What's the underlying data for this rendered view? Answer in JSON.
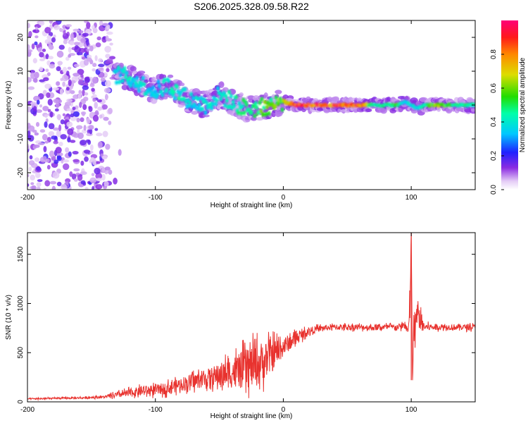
{
  "title": "S206.2025.328.09.58.R22",
  "chart_data": [
    {
      "type": "heatmap",
      "title": "S206.2025.328.09.58.R22",
      "xlabel": "Height of straight line (km)",
      "ylabel": "Frequency (Hz)",
      "xlim": [
        -200,
        150
      ],
      "ylim": [
        -25,
        25
      ],
      "xticks": [
        -200,
        -100,
        0,
        100
      ],
      "xtick_labels": [
        "-200",
        "-100",
        "0",
        "100"
      ],
      "yticks": [
        -20,
        -10,
        0,
        10,
        20
      ],
      "ytick_labels": [
        "-20",
        "-10",
        "0",
        "10",
        "20"
      ],
      "colorbar": {
        "label": "Normalized spectral amplitude",
        "range": [
          0,
          1
        ],
        "ticks": [
          0.0,
          0.2,
          0.4,
          0.6,
          0.8
        ],
        "tick_labels": [
          "0.0",
          "0.2",
          "0.4",
          "0.6",
          "0.8"
        ]
      },
      "ridge": {
        "x": [
          -130,
          -120,
          -110,
          -100,
          -90,
          -80,
          -70,
          -60,
          -50,
          -40,
          -30,
          -20,
          -10,
          0,
          10,
          20,
          30,
          40,
          50,
          60,
          70,
          80,
          90,
          95,
          100,
          105,
          110,
          120,
          130,
          140,
          150
        ],
        "freq": [
          9,
          8,
          6,
          4,
          6,
          3,
          1,
          0,
          3,
          1,
          -1,
          -1,
          0,
          1,
          0,
          0,
          0,
          0,
          0,
          0,
          0,
          0,
          0,
          1,
          0,
          -1,
          0,
          0,
          0,
          0,
          0
        ],
        "amplitude": [
          0.4,
          0.45,
          0.4,
          0.4,
          0.45,
          0.45,
          0.4,
          0.45,
          0.4,
          0.45,
          0.5,
          0.6,
          0.6,
          0.65,
          0.95,
          0.95,
          0.95,
          0.95,
          0.95,
          0.95,
          0.5,
          0.5,
          0.55,
          0.4,
          0.4,
          0.4,
          0.5,
          0.7,
          0.55,
          0.5,
          0.5
        ]
      },
      "noise_region": [
        -200,
        -135
      ]
    },
    {
      "type": "line",
      "xlabel": "Height of straight line (km)",
      "ylabel": "SNR (10 * v/v)",
      "xlim": [
        -200,
        150
      ],
      "ylim": [
        0,
        1720
      ],
      "xticks": [
        -200,
        -100,
        0,
        100
      ],
      "xtick_labels": [
        "-200",
        "-100",
        "0",
        "100"
      ],
      "yticks": [
        0,
        500,
        1000,
        1500
      ],
      "ytick_labels": [
        "0",
        "500",
        "1000",
        "1500"
      ],
      "series": [
        {
          "name": "SNR",
          "color": "#e8322e",
          "x": [
            -200,
            -180,
            -160,
            -140,
            -130,
            -120,
            -110,
            -100,
            -90,
            -80,
            -70,
            -60,
            -50,
            -40,
            -30,
            -20,
            -10,
            0,
            10,
            20,
            30,
            40,
            50,
            60,
            70,
            80,
            90,
            95,
            98,
            99,
            100,
            101,
            102,
            105,
            110,
            120,
            130,
            140,
            150
          ],
          "y": [
            30,
            35,
            40,
            50,
            70,
            90,
            110,
            120,
            140,
            180,
            210,
            240,
            270,
            300,
            330,
            380,
            460,
            560,
            650,
            720,
            750,
            760,
            760,
            760,
            755,
            760,
            760,
            780,
            700,
            1000,
            1720,
            220,
            700,
            900,
            760,
            760,
            760,
            760,
            760
          ],
          "noise_amplitude": [
            8,
            8,
            10,
            12,
            30,
            40,
            50,
            55,
            60,
            70,
            80,
            90,
            120,
            160,
            200,
            220,
            180,
            100,
            60,
            40,
            30,
            30,
            30,
            30,
            30,
            30,
            30,
            40,
            100,
            200,
            0,
            0,
            200,
            150,
            40,
            30,
            30,
            30,
            30
          ]
        }
      ]
    }
  ]
}
